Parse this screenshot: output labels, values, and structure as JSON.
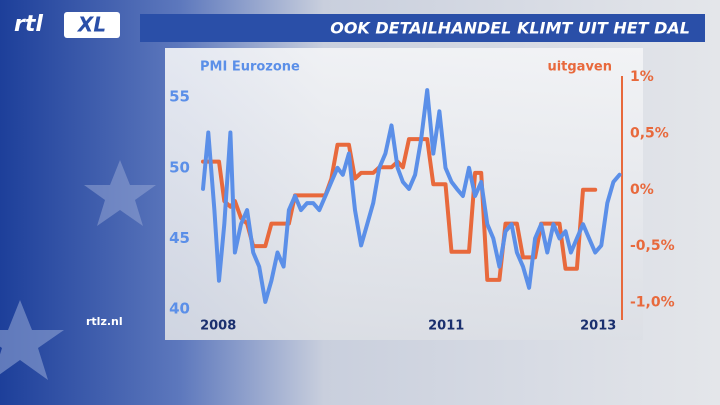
{
  "logo": {
    "main": "rtl",
    "badge": "XL"
  },
  "watermark": "rtlz.nl",
  "chart_data": {
    "type": "line",
    "title": "OOK DETAILHANDEL KLIMT UIT HET DAL",
    "x": [
      2007.8,
      2007.87,
      2007.95,
      2008.01,
      2008.08,
      2008.16,
      2008.22,
      2008.3,
      2008.38,
      2008.46,
      2008.54,
      2008.62,
      2008.7,
      2008.78,
      2008.86,
      2008.93,
      2009.01,
      2009.09,
      2009.17,
      2009.25,
      2009.33,
      2009.41,
      2009.49,
      2009.57,
      2009.64,
      2009.72,
      2009.8,
      2009.88,
      2009.96,
      2010.04,
      2010.12,
      2010.2,
      2010.28,
      2010.36,
      2010.43,
      2010.51,
      2010.59,
      2010.67,
      2010.75,
      2010.83,
      2010.91,
      2010.99,
      2011.07,
      2011.14,
      2011.22,
      2011.3,
      2011.38,
      2011.46,
      2011.54,
      2011.62,
      2011.7,
      2011.78,
      2011.86,
      2011.93,
      2012.01,
      2012.09,
      2012.17,
      2012.25,
      2012.33,
      2012.41,
      2012.49,
      2012.57,
      2012.64,
      2012.72,
      2012.8,
      2012.88,
      2012.96,
      2013.04,
      2013.12,
      2013.2,
      2013.28
    ],
    "xlim": [
      2007.8,
      2013.28
    ],
    "xticks": [
      2008,
      2011,
      2013
    ],
    "ylim": [
      39.5,
      56.5
    ],
    "yticks": [
      40,
      45,
      50,
      55
    ],
    "y2lim": [
      -1.12,
      1.01
    ],
    "y2ticks": [
      {
        "value": 1,
        "label": "1%"
      },
      {
        "value": 0.5,
        "label": "0,5%"
      },
      {
        "value": 0,
        "label": "0%"
      },
      {
        "value": -0.5,
        "label": "-0,5%"
      },
      {
        "value": -1.0,
        "label": "-1,0%"
      }
    ],
    "series": [
      {
        "name": "PMI Eurozone",
        "color": "#5b8fe8",
        "axis": "y",
        "values": [
          48.5,
          52.5,
          47,
          42,
          46,
          52.5,
          44,
          46,
          47,
          44,
          43,
          40.5,
          42,
          44,
          43,
          47,
          48,
          47,
          47.5,
          47.5,
          47,
          48,
          49,
          50,
          49.5,
          51,
          47,
          44.5,
          46,
          47.5,
          50,
          51,
          53,
          50,
          49,
          48.5,
          49.5,
          52,
          55.5,
          51,
          54,
          50,
          49,
          48.5,
          48,
          50,
          48,
          49,
          46,
          45,
          43,
          45.5,
          46,
          44,
          43,
          41.5,
          45,
          46,
          44,
          46,
          45,
          45.5,
          44,
          45,
          46,
          45,
          44,
          44.5,
          47.5,
          49,
          49.5
        ]
      },
      {
        "name": "uitgaven",
        "color": "#e8693c",
        "axis": "y2",
        "values": [
          0.25,
          0.25,
          0.25,
          0.25,
          -0.1,
          -0.15,
          -0.1,
          -0.25,
          -0.3,
          -0.5,
          -0.5,
          -0.5,
          -0.3,
          -0.3,
          -0.3,
          -0.3,
          -0.05,
          -0.05,
          -0.05,
          -0.05,
          -0.05,
          -0.05,
          0.1,
          0.4,
          0.4,
          0.4,
          0.1,
          0.15,
          0.15,
          0.15,
          0.2,
          0.2,
          0.2,
          0.25,
          0.2,
          0.45,
          0.45,
          0.45,
          0.45,
          0.05,
          0.05,
          0.05,
          -0.55,
          -0.55,
          -0.55,
          -0.55,
          0.15,
          0.15,
          -0.8,
          -0.8,
          -0.8,
          -0.3,
          -0.3,
          -0.3,
          -0.6,
          -0.6,
          -0.6,
          -0.3,
          -0.3,
          -0.3,
          -0.3,
          -0.7,
          -0.7,
          -0.7,
          0,
          0,
          0,
          null,
          null,
          null,
          null
        ]
      }
    ]
  }
}
